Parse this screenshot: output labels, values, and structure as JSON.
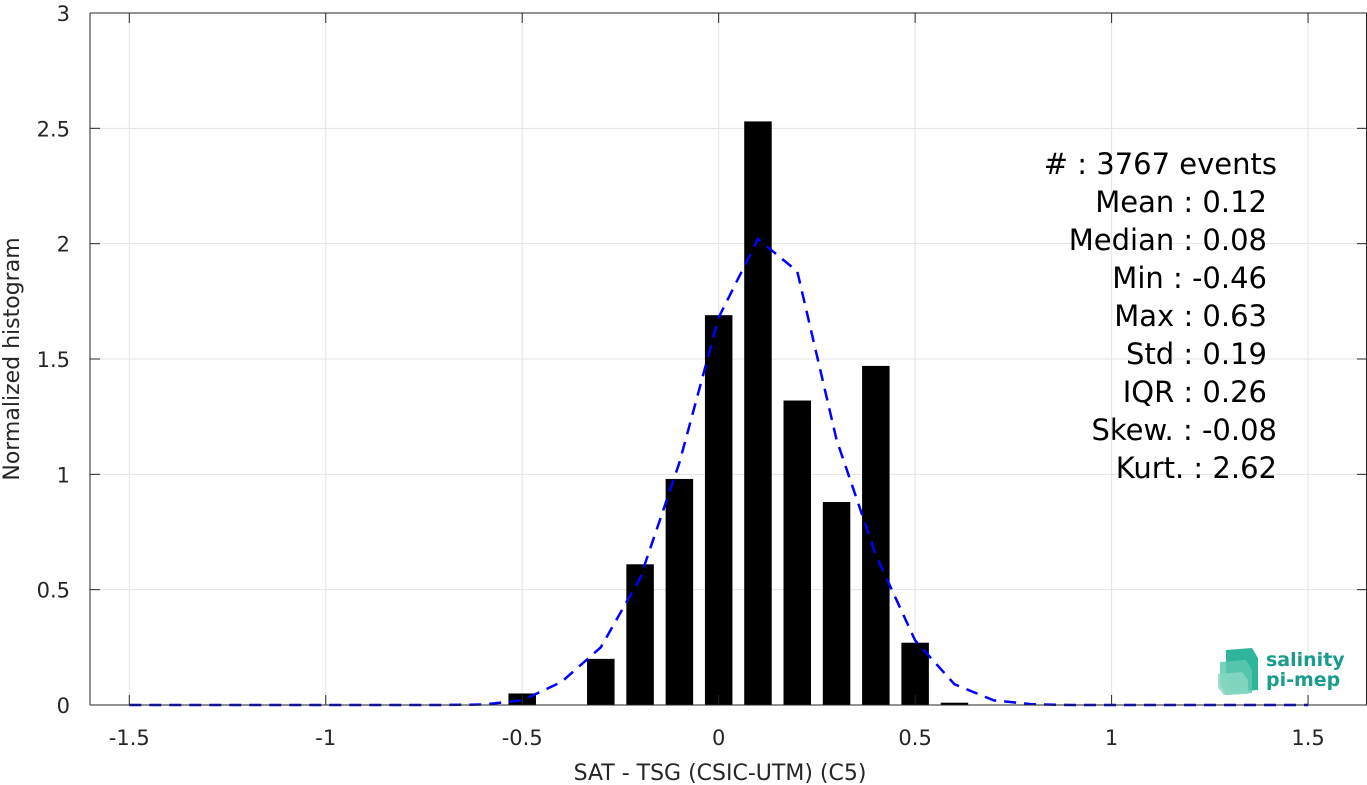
{
  "chart_data": {
    "type": "bar",
    "xlabel": "SAT - TSG (CSIC-UTM) (C5)",
    "ylabel": "Normalized histogram",
    "xlim": [
      -1.6,
      1.65
    ],
    "ylim": [
      0,
      3
    ],
    "xticks": [
      -1.5,
      -1,
      -0.5,
      0,
      0.5,
      1,
      1.5
    ],
    "xtick_labels": [
      "-1.5",
      "-1",
      "-0.5",
      "0",
      "0.5",
      "1",
      "1.5"
    ],
    "yticks": [
      0,
      0.5,
      1,
      1.5,
      2,
      2.5,
      3
    ],
    "ytick_labels": [
      "0",
      "0.5",
      "1",
      "1.5",
      "2",
      "2.5",
      "3"
    ],
    "grid": true,
    "bar_width": 0.07,
    "bars": {
      "x": [
        -0.5,
        -0.3,
        -0.2,
        -0.1,
        0.0,
        0.1,
        0.2,
        0.3,
        0.4,
        0.5,
        0.6
      ],
      "values": [
        0.05,
        0.2,
        0.61,
        0.98,
        1.69,
        2.53,
        1.32,
        0.88,
        1.47,
        0.27,
        0.01
      ],
      "color": "#000000"
    },
    "fit_curve": {
      "style": "dashed",
      "color": "#0000ff",
      "x": [
        -1.5,
        -1.4,
        -1.3,
        -1.2,
        -1.1,
        -1.0,
        -0.9,
        -0.8,
        -0.7,
        -0.6,
        -0.5,
        -0.4,
        -0.3,
        -0.2,
        -0.1,
        0.0,
        0.1,
        0.2,
        0.3,
        0.4,
        0.5,
        0.6,
        0.7,
        0.8,
        0.9,
        1.0,
        1.1,
        1.2,
        1.3,
        1.4,
        1.5
      ],
      "y": [
        0,
        0,
        0,
        0,
        0,
        0,
        0,
        0,
        0,
        0.002,
        0.02,
        0.1,
        0.25,
        0.55,
        1.05,
        1.68,
        2.02,
        1.88,
        1.15,
        0.65,
        0.28,
        0.09,
        0.02,
        0.003,
        0,
        0,
        0,
        0,
        0,
        0,
        0
      ]
    }
  },
  "stats": [
    "#  : 3767 events",
    "Mean : 0.12",
    "Median : 0.08",
    "Min : -0.46",
    "Max : 0.63",
    "Std : 0.19",
    "IQR : 0.26",
    "Skew. : -0.08",
    "Kurt. : 2.62"
  ],
  "logo": {
    "line1": "salinity",
    "line2": "pi-mep",
    "color": "#1a9c8c"
  }
}
